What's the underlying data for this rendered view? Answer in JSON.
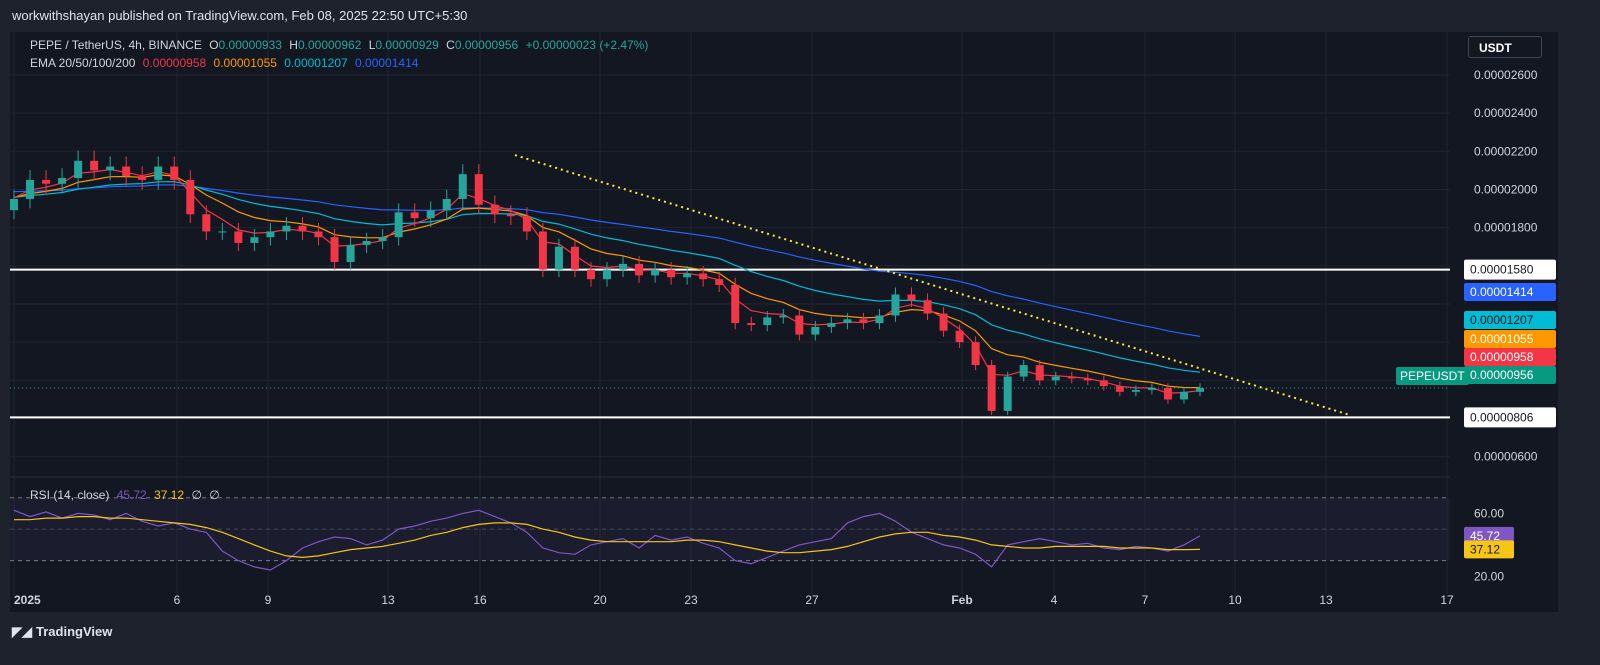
{
  "header": {
    "publisher": "workwithshayan published on TradingView.com, Feb 08, 2025 22:50 UTC+5:30"
  },
  "legend": {
    "symbol": "PEPE / TetherUS, 4h, BINANCE",
    "o_label": "O",
    "o": "0.00000933",
    "h_label": "H",
    "h": "0.00000962",
    "l_label": "L",
    "l": "0.00000929",
    "c_label": "C",
    "c": "0.00000956",
    "change": "+0.00000023 (+2.47%)",
    "ema_label": "EMA 20/50/100/200",
    "ema20": "0.00000958",
    "ema50": "0.00001055",
    "ema100": "0.00001207",
    "ema200": "0.00001414",
    "rsi_label": "RSI (14, close)",
    "rsi": "45.72",
    "rsi_ma": "37.12",
    "rsi_x1": "∅",
    "rsi_x2": "∅"
  },
  "currency_button": "USDT",
  "symbol_tag": "PEPEUSDT",
  "footer": {
    "brand": "TradingView"
  },
  "colors": {
    "up": "#26a69a",
    "down": "#f23645",
    "ema20": "#f23645",
    "ema50": "#ff9800",
    "ema100": "#00bcd4",
    "ema200": "#2962ff",
    "rsi": "#7e57c2",
    "rsi_ma": "#f5c518",
    "trendline": "#ffeb3b",
    "level": "#ffffff"
  },
  "chart_data": {
    "type": "candlestick",
    "price_axis": {
      "ticks": [
        "0.00002600",
        "0.00002400",
        "0.00002200",
        "0.00002000",
        "0.00001800",
        "0.00000600"
      ],
      "ylim": [
        5.2e-06,
        2.72e-05
      ]
    },
    "time_axis": {
      "ticks": [
        "2025",
        "6",
        "9",
        "13",
        "16",
        "20",
        "23",
        "27",
        "Feb",
        "4",
        "7",
        "10",
        "13",
        "17"
      ]
    },
    "levels": [
      {
        "label": "0.00001580",
        "value": 1.58e-05
      },
      {
        "label": "0.00000806",
        "value": 8.06e-06
      }
    ],
    "trendline": {
      "from": [
        "Jan 17",
        2.18e-05
      ],
      "to": [
        "Feb 14",
        8.18e-06
      ],
      "style": "dotted"
    },
    "price_labels": [
      {
        "label": "0.00001414",
        "series": "ema200"
      },
      {
        "label": "0.00001207",
        "series": "ema100"
      },
      {
        "label": "0.00001055",
        "series": "ema50"
      },
      {
        "label": "0.00000958",
        "series": "ema20"
      },
      {
        "label": "0.00000956",
        "series": "last"
      }
    ],
    "close_path": [
      [
        0,
        1.95e-05
      ],
      [
        1,
        2.05e-05
      ],
      [
        2,
        2.03e-05
      ],
      [
        3,
        2.06e-05
      ],
      [
        4,
        2.15e-05
      ],
      [
        5,
        2.1e-05
      ],
      [
        6,
        2.12e-05
      ],
      [
        7,
        2.07e-05
      ],
      [
        8,
        2.05e-05
      ],
      [
        9,
        2.12e-05
      ],
      [
        10,
        2.05e-05
      ],
      [
        11,
        1.87e-05
      ],
      [
        12,
        1.78e-05
      ],
      [
        13,
        1.78e-05
      ],
      [
        14,
        1.72e-05
      ],
      [
        15,
        1.75e-05
      ],
      [
        16,
        1.78e-05
      ],
      [
        17,
        1.81e-05
      ],
      [
        18,
        1.78e-05
      ],
      [
        19,
        1.75e-05
      ],
      [
        20,
        1.62e-05
      ],
      [
        21,
        1.71e-05
      ],
      [
        22,
        1.73e-05
      ],
      [
        23,
        1.75e-05
      ],
      [
        24,
        1.88e-05
      ],
      [
        25,
        1.85e-05
      ],
      [
        26,
        1.89e-05
      ],
      [
        27,
        1.95e-05
      ],
      [
        28,
        2.08e-05
      ],
      [
        29,
        1.92e-05
      ],
      [
        30,
        1.87e-05
      ],
      [
        31,
        1.86e-05
      ],
      [
        32,
        1.78e-05
      ],
      [
        33,
        1.58e-05
      ],
      [
        34,
        1.7e-05
      ],
      [
        35,
        1.58e-05
      ],
      [
        36,
        1.53e-05
      ],
      [
        37,
        1.58e-05
      ],
      [
        38,
        1.61e-05
      ],
      [
        39,
        1.55e-05
      ],
      [
        40,
        1.58e-05
      ],
      [
        41,
        1.54e-05
      ],
      [
        42,
        1.56e-05
      ],
      [
        43,
        1.53e-05
      ],
      [
        44,
        1.5e-05
      ],
      [
        45,
        1.3e-05
      ],
      [
        46,
        1.29e-05
      ],
      [
        47,
        1.33e-05
      ],
      [
        48,
        1.34e-05
      ],
      [
        49,
        1.24e-05
      ],
      [
        50,
        1.28e-05
      ],
      [
        51,
        1.3e-05
      ],
      [
        52,
        1.32e-05
      ],
      [
        53,
        1.3e-05
      ],
      [
        54,
        1.34e-05
      ],
      [
        55,
        1.45e-05
      ],
      [
        56,
        1.42e-05
      ],
      [
        57,
        1.35e-05
      ],
      [
        58,
        1.26e-05
      ],
      [
        59,
        1.2e-05
      ],
      [
        60,
        1.08e-05
      ],
      [
        61,
        8.4e-06
      ],
      [
        62,
        1.02e-05
      ],
      [
        63,
        1.08e-05
      ],
      [
        64,
        1e-05
      ],
      [
        65,
        1.02e-05
      ],
      [
        66,
        1.01e-05
      ],
      [
        67,
        1e-05
      ],
      [
        68,
        9.7e-06
      ],
      [
        69,
        9.4e-06
      ],
      [
        70,
        9.5e-06
      ],
      [
        71,
        9.6e-06
      ],
      [
        72,
        9e-06
      ],
      [
        73,
        9.4e-06
      ],
      [
        74,
        9.6e-06
      ]
    ],
    "rsi_axis": {
      "ticks": [
        "60.00",
        "20.00"
      ],
      "ylim": [
        10,
        80
      ],
      "bands": [
        30,
        70
      ]
    },
    "rsi_values": [
      62,
      58,
      61,
      57,
      60,
      59,
      56,
      60,
      55,
      52,
      54,
      50,
      48,
      36,
      30,
      26,
      24,
      30,
      38,
      42,
      45,
      44,
      40,
      43,
      50,
      52,
      55,
      57,
      60,
      62,
      58,
      54,
      48,
      38,
      35,
      34,
      40,
      42,
      44,
      38,
      46,
      43,
      45,
      41,
      38,
      30,
      28,
      32,
      36,
      40,
      42,
      44,
      54,
      58,
      60,
      55,
      48,
      44,
      40,
      38,
      34,
      26,
      40,
      42,
      44,
      42,
      40,
      41,
      38,
      37,
      39,
      38,
      36,
      40,
      45.72
    ],
    "rsi_ma_values": [
      56,
      56,
      57,
      57,
      58,
      58,
      57,
      57,
      56,
      55,
      54,
      53,
      51,
      48,
      44,
      40,
      36,
      33,
      32,
      33,
      35,
      37,
      38,
      39,
      41,
      43,
      46,
      48,
      51,
      53,
      54,
      54,
      53,
      50,
      48,
      45,
      43,
      42,
      42,
      42,
      42,
      42,
      43,
      43,
      42,
      40,
      38,
      36,
      35,
      35,
      36,
      37,
      39,
      42,
      45,
      47,
      48,
      48,
      46,
      45,
      43,
      40,
      39,
      38,
      38,
      39,
      39,
      39,
      39,
      38,
      38,
      38,
      37,
      37,
      37.12
    ]
  }
}
